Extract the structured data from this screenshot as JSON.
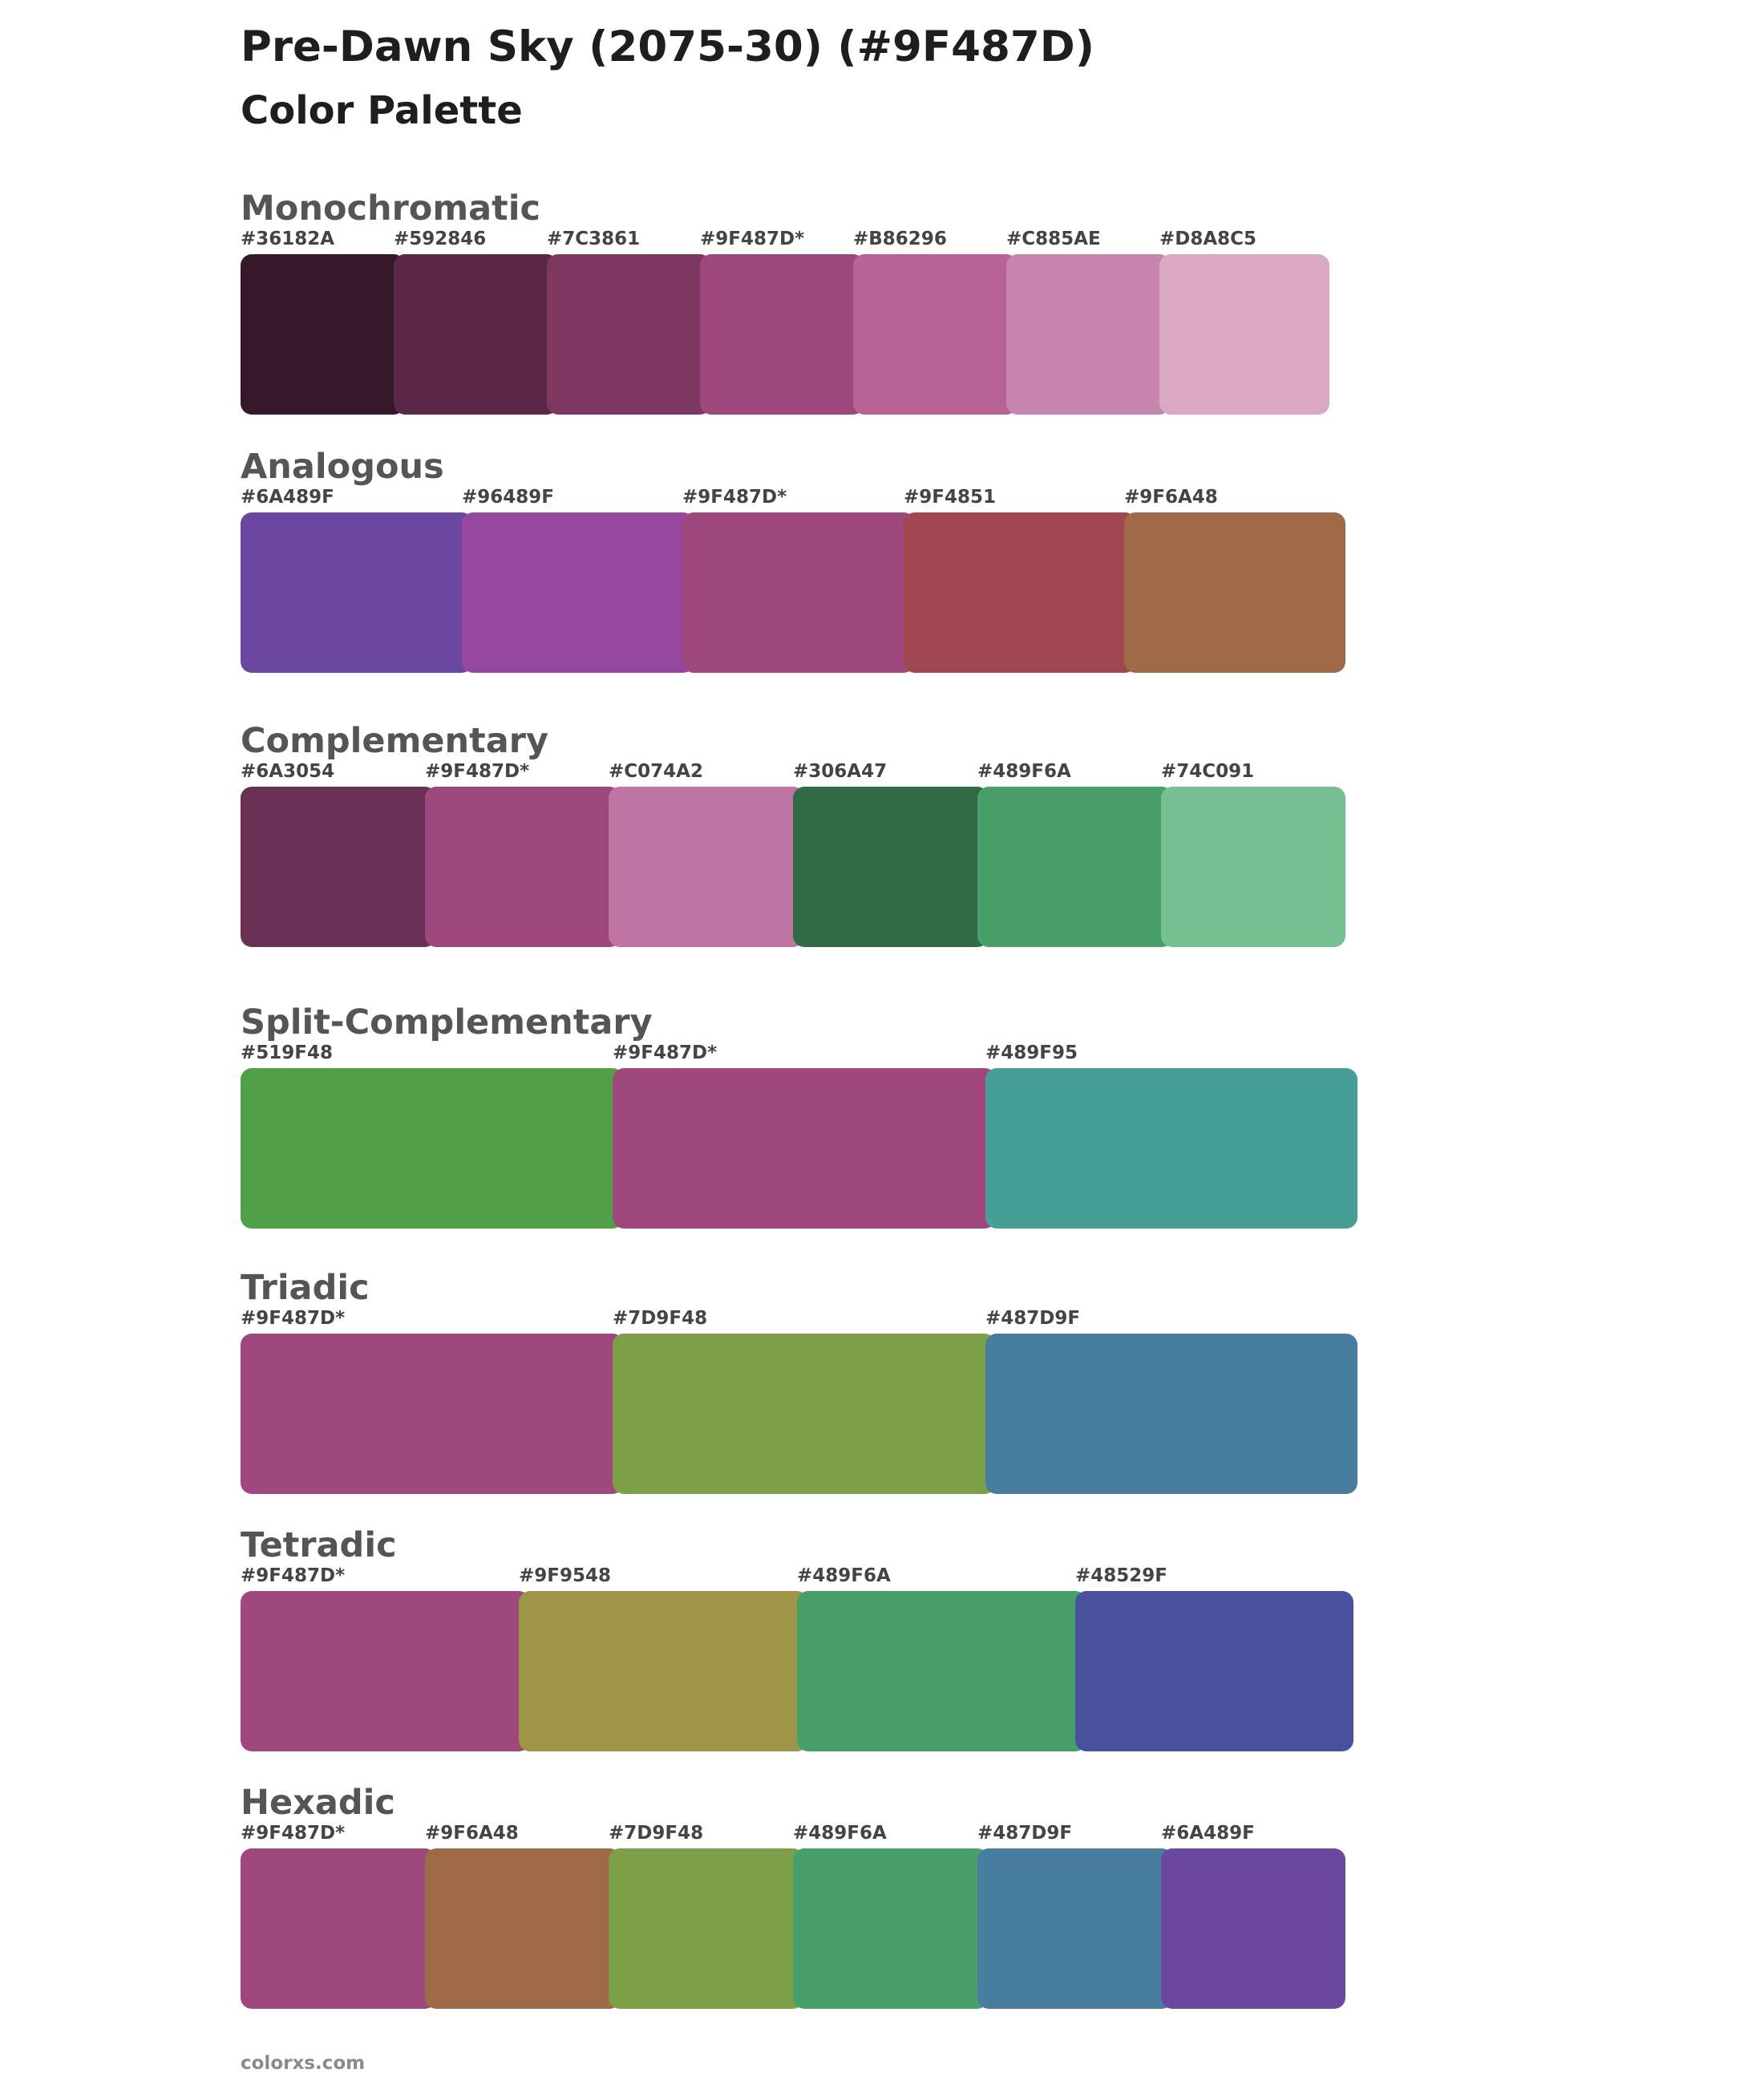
{
  "title": "Pre-Dawn Sky (2075-30) (#9F487D)",
  "subtitle": "Color Palette",
  "footer": "colorxs.com",
  "palettes": [
    {
      "name": "Monochromatic",
      "swatches": [
        {
          "label": "#36182A",
          "color": "#36182A"
        },
        {
          "label": "#592846",
          "color": "#592846"
        },
        {
          "label": "#7C3861",
          "color": "#7C3861"
        },
        {
          "label": "#9F487D*",
          "color": "#9F487D"
        },
        {
          "label": "#B86296",
          "color": "#B86296"
        },
        {
          "label": "#C885AE",
          "color": "#C885AE"
        },
        {
          "label": "#D8A8C5",
          "color": "#D8A8C5"
        }
      ]
    },
    {
      "name": "Analogous",
      "swatches": [
        {
          "label": "#6A489F",
          "color": "#6A489F"
        },
        {
          "label": "#96489F",
          "color": "#96489F"
        },
        {
          "label": "#9F487D*",
          "color": "#9F487D"
        },
        {
          "label": "#9F4851",
          "color": "#9F4851"
        },
        {
          "label": "#9F6A48",
          "color": "#9F6A48"
        }
      ]
    },
    {
      "name": "Complementary",
      "swatches": [
        {
          "label": "#6A3054",
          "color": "#6A3054"
        },
        {
          "label": "#9F487D*",
          "color": "#9F487D"
        },
        {
          "label": "#C074A2",
          "color": "#C074A2"
        },
        {
          "label": "#306A47",
          "color": "#306A47"
        },
        {
          "label": "#489F6A",
          "color": "#489F6A"
        },
        {
          "label": "#74C091",
          "color": "#74C091"
        }
      ]
    },
    {
      "name": "Split-Complementary",
      "swatches": [
        {
          "label": "#519F48",
          "color": "#519F48"
        },
        {
          "label": "#9F487D*",
          "color": "#9F487D"
        },
        {
          "label": "#489F95",
          "color": "#489F95"
        }
      ]
    },
    {
      "name": "Triadic",
      "swatches": [
        {
          "label": "#9F487D*",
          "color": "#9F487D"
        },
        {
          "label": "#7D9F48",
          "color": "#7D9F48"
        },
        {
          "label": "#487D9F",
          "color": "#487D9F"
        }
      ]
    },
    {
      "name": "Tetradic",
      "swatches": [
        {
          "label": "#9F487D*",
          "color": "#9F487D"
        },
        {
          "label": "#9F9548",
          "color": "#9F9548"
        },
        {
          "label": "#489F6A",
          "color": "#489F6A"
        },
        {
          "label": "#48529F",
          "color": "#48529F"
        }
      ]
    },
    {
      "name": "Hexadic",
      "swatches": [
        {
          "label": "#9F487D*",
          "color": "#9F487D"
        },
        {
          "label": "#9F6A48",
          "color": "#9F6A48"
        },
        {
          "label": "#7D9F48",
          "color": "#7D9F48"
        },
        {
          "label": "#489F6A",
          "color": "#489F6A"
        },
        {
          "label": "#487D9F",
          "color": "#487D9F"
        },
        {
          "label": "#6A489F",
          "color": "#6A489F"
        }
      ]
    }
  ]
}
